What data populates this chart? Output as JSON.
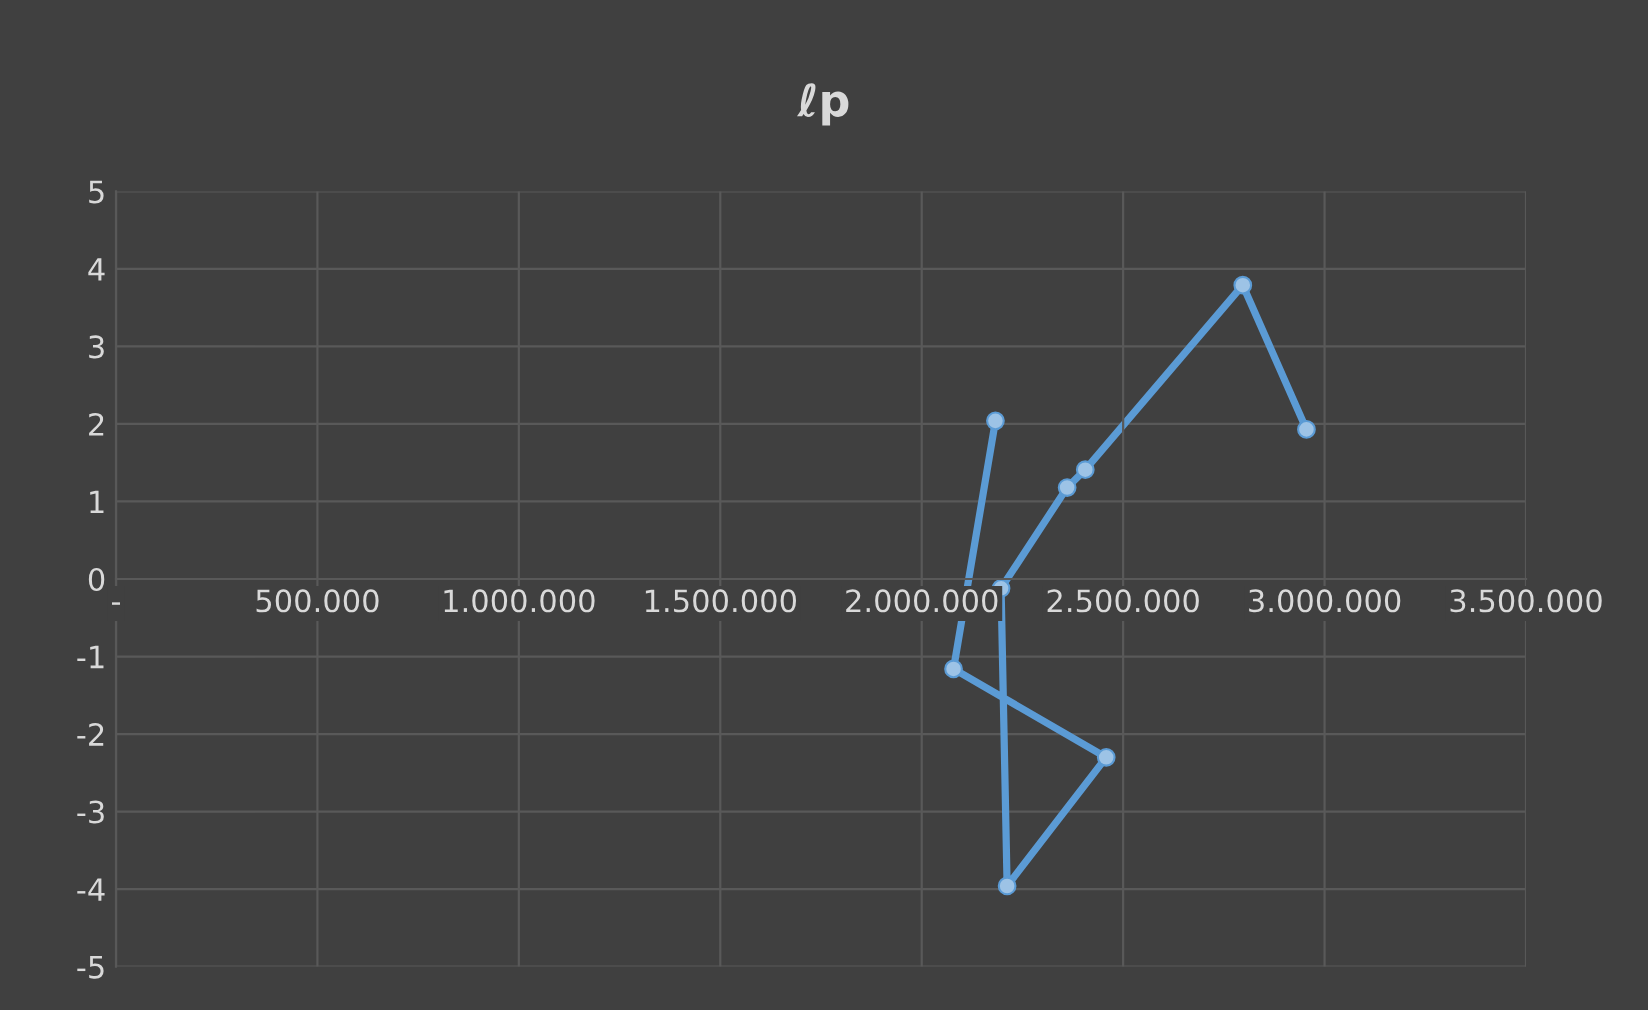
{
  "chart_data": {
    "type": "line",
    "title": "ℓp",
    "series": [
      {
        "color": "#5b9bd5",
        "x": [
          2183000,
          2079000,
          2458000,
          2212000,
          2197000,
          2361000,
          2406000,
          2797000,
          2955000
        ],
        "values": [
          2.04,
          -1.16,
          -2.3,
          -3.96,
          -0.12,
          1.18,
          1.41,
          3.79,
          1.93
        ]
      }
    ],
    "xlim": [
      0,
      3500000
    ],
    "xticks": [
      {
        "value": 0,
        "label": "-"
      },
      {
        "value": 500000,
        "label": "500.000"
      },
      {
        "value": 1000000,
        "label": "1.000.000"
      },
      {
        "value": 1500000,
        "label": "1.500.000"
      },
      {
        "value": 2000000,
        "label": "2.000.000"
      },
      {
        "value": 2500000,
        "label": "2.500.000"
      },
      {
        "value": 3000000,
        "label": "3.000.000"
      },
      {
        "value": 3500000,
        "label": "3.500.000"
      }
    ],
    "ylim": [
      -5,
      5
    ],
    "yticks": [
      -5,
      -4,
      -3,
      -2,
      -1,
      0,
      1,
      2,
      3,
      4,
      5
    ],
    "grid": true,
    "marker": "circle",
    "line_style": "solid",
    "legend": false
  }
}
